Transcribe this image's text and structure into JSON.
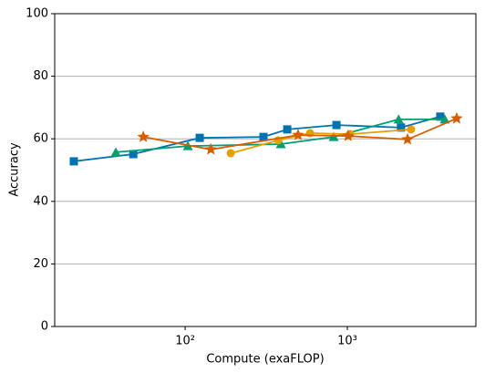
{
  "chart_data": {
    "type": "line",
    "x_label": "Compute (exaFLOP)",
    "y_label": "Accuracy",
    "xscale": "log",
    "xlim": [
      15.7,
      6200
    ],
    "xticks": [
      {
        "value": 100,
        "label": "10²"
      },
      {
        "value": 1000,
        "label": "10³"
      }
    ],
    "ylim": [
      0,
      100
    ],
    "yticks": [
      0,
      20,
      40,
      60,
      80,
      100
    ],
    "grid": true,
    "series": [
      {
        "color": "#0072b2",
        "marker": "square",
        "x": [
          20.6,
          47.9,
          123,
          304,
          426,
          857,
          2140,
          3740
        ],
        "values": [
          52.8,
          55.1,
          60.3,
          60.6,
          63.0,
          64.4,
          63.6,
          67.1
        ]
      },
      {
        "color": "#009e73",
        "marker": "triangle",
        "x": [
          37.4,
          104,
          389,
          824,
          2070,
          3990
        ],
        "values": [
          55.7,
          57.7,
          58.3,
          60.6,
          66.2,
          66.2
        ]
      },
      {
        "color": "#e69f00",
        "marker": "circle",
        "x": [
          191,
          374,
          589,
          1040,
          2470
        ],
        "values": [
          55.4,
          59.5,
          61.8,
          61.5,
          63.0
        ]
      },
      {
        "color": "#d55e00",
        "marker": "star",
        "x": [
          55.2,
          144,
          497,
          1010,
          2350,
          4720
        ],
        "values": [
          60.6,
          56.6,
          61.2,
          60.9,
          59.8,
          66.5
        ]
      }
    ]
  }
}
